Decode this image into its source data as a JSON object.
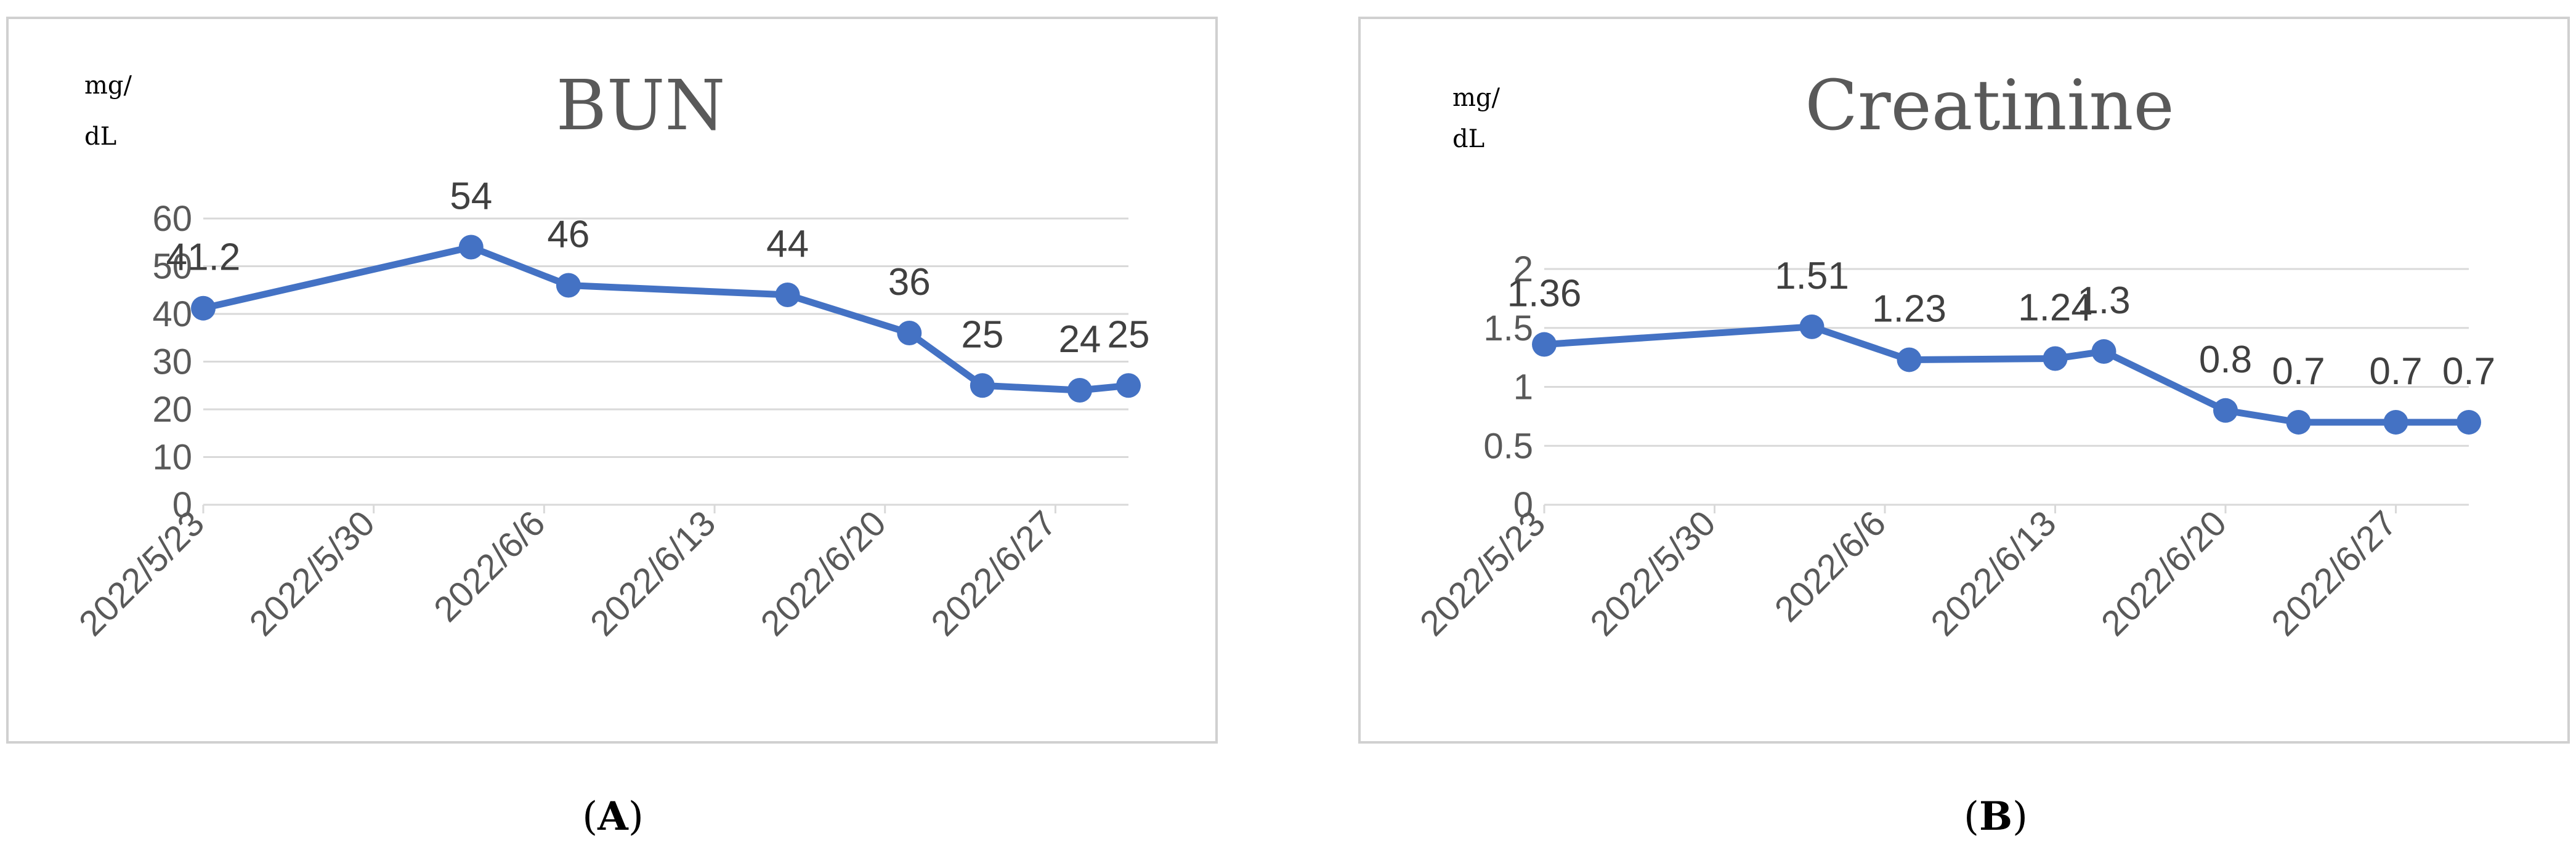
{
  "chart_data": [
    {
      "type": "line",
      "title": "BUN",
      "unit_label": [
        "mg/",
        "dL"
      ],
      "panel_label": "A",
      "x": [
        "2022/5/23",
        "2022/6/3",
        "2022/6/7",
        "2022/6/16",
        "2022/6/21",
        "2022/6/24",
        "2022/6/28",
        "2022/6/30"
      ],
      "y": [
        41.2,
        54,
        46,
        44,
        36,
        25,
        24,
        25
      ],
      "data_labels": [
        "41.2",
        "54",
        "46",
        "44",
        "36",
        "25",
        "24",
        "25"
      ],
      "xticks": [
        "2022/5/23",
        "2022/5/30",
        "2022/6/6",
        "2022/6/13",
        "2022/6/20",
        "2022/6/27"
      ],
      "yticks": [
        "0",
        "10",
        "20",
        "30",
        "40",
        "50",
        "60"
      ],
      "ylim": [
        0,
        60
      ],
      "xlim": [
        "2022/5/23",
        "2022/6/30"
      ],
      "grid": true,
      "color": "#4472C4"
    },
    {
      "type": "line",
      "title": "Creatinine",
      "unit_label": [
        "mg/",
        "dL"
      ],
      "panel_label": "B",
      "x": [
        "2022/5/23",
        "2022/6/3",
        "2022/6/7",
        "2022/6/13",
        "2022/6/15",
        "2022/6/20",
        "2022/6/23",
        "2022/6/27",
        "2022/6/30"
      ],
      "y": [
        1.36,
        1.51,
        1.23,
        1.24,
        1.3,
        0.8,
        0.7,
        0.7,
        0.7
      ],
      "data_labels": [
        "1.36",
        "1.51",
        "1.23",
        "1.24",
        "1.3",
        "0.8",
        "0.7",
        "0.7",
        "0.7"
      ],
      "xticks": [
        "2022/5/23",
        "2022/5/30",
        "2022/6/6",
        "2022/6/13",
        "2022/6/20",
        "2022/6/27"
      ],
      "yticks": [
        "0",
        "0.5",
        "1",
        "1.5",
        "2"
      ],
      "ylim": [
        0,
        2
      ],
      "xlim": [
        "2022/5/23",
        "2022/6/30"
      ],
      "grid": true,
      "color": "#4472C4"
    }
  ]
}
